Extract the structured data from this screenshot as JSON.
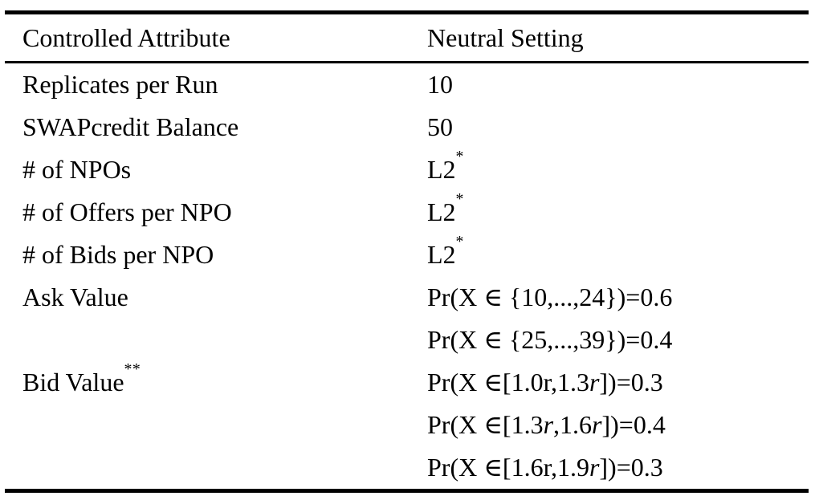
{
  "table": {
    "headers": [
      "Controlled Attribute",
      "Neutral Setting"
    ],
    "rows": [
      {
        "attribute": {
          "text": "Replicates per Run",
          "sup": ""
        },
        "lines": [
          [
            {
              "t": "10"
            }
          ]
        ]
      },
      {
        "attribute": {
          "text": "SWAPcredit Balance",
          "sup": ""
        },
        "lines": [
          [
            {
              "t": "50"
            }
          ]
        ]
      },
      {
        "attribute": {
          "text": "# of NPOs",
          "sup": ""
        },
        "lines": [
          [
            {
              "t": "L2"
            },
            {
              "t": "*",
              "sup": true
            }
          ]
        ]
      },
      {
        "attribute": {
          "text": "# of Offers per NPO",
          "sup": ""
        },
        "lines": [
          [
            {
              "t": "L2"
            },
            {
              "t": "*",
              "sup": true
            }
          ]
        ]
      },
      {
        "attribute": {
          "text": "# of Bids per NPO",
          "sup": ""
        },
        "lines": [
          [
            {
              "t": "L2"
            },
            {
              "t": "*",
              "sup": true
            }
          ]
        ]
      },
      {
        "attribute": {
          "text": "Ask Value",
          "sup": ""
        },
        "lines": [
          [
            {
              "t": "Pr(X ∈ {10,...,24})=0.6"
            }
          ],
          [
            {
              "t": "Pr(X ∈ {25,...,39})=0.4"
            }
          ]
        ]
      },
      {
        "attribute": {
          "text": "Bid Value",
          "sup": "**"
        },
        "lines": [
          [
            {
              "t": "Pr(X ∈[1.0r,1.3"
            },
            {
              "t": "r",
              "i": true
            },
            {
              "t": "])=0.3"
            }
          ],
          [
            {
              "t": "Pr(X ∈[1.3"
            },
            {
              "t": "r",
              "i": true
            },
            {
              "t": ",1.6"
            },
            {
              "t": "r",
              "i": true
            },
            {
              "t": "])=0.4"
            }
          ],
          [
            {
              "t": "Pr(X ∈[1.6r,1.9"
            },
            {
              "t": "r",
              "i": true
            },
            {
              "t": "])=0.3"
            }
          ]
        ]
      }
    ],
    "colors": {
      "text": "#000000",
      "rule": "#000000",
      "background": "#ffffff"
    }
  }
}
